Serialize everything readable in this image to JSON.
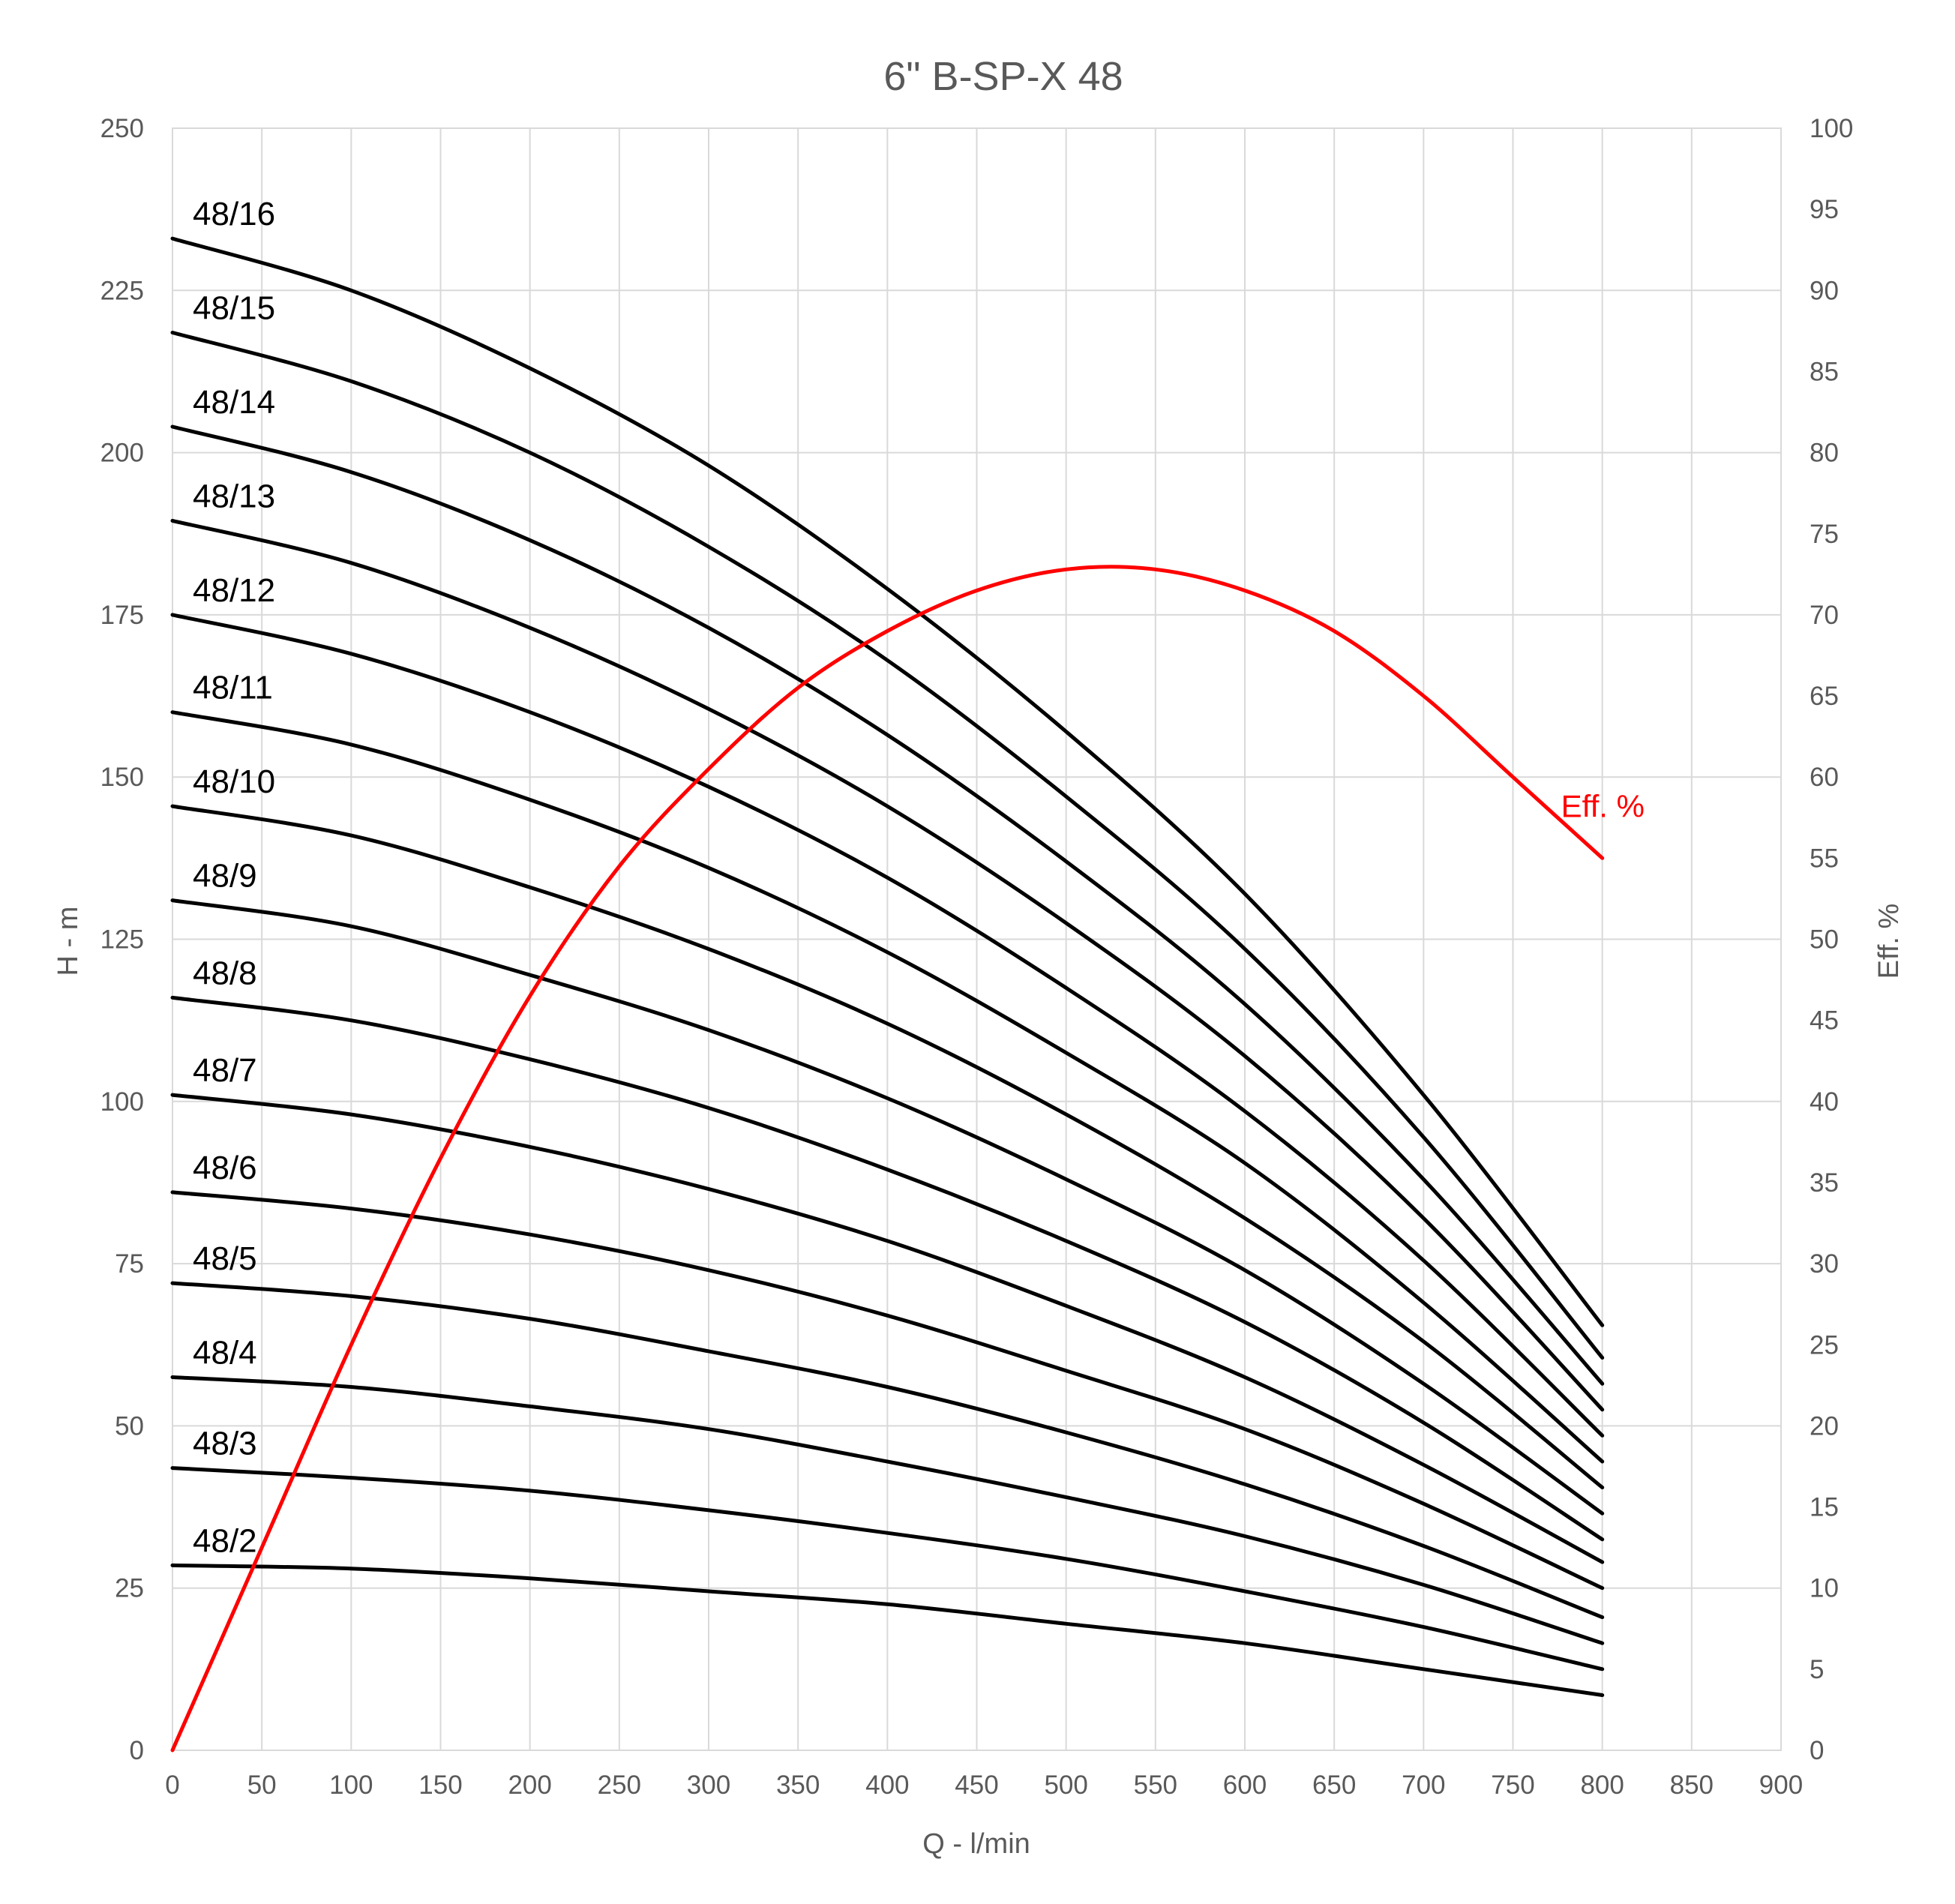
{
  "chart_data": {
    "type": "line",
    "title": "6\" B-SP-X 48",
    "xlabel": "Q - l/min",
    "ylabel": "H - m",
    "y2label": "Eff. %",
    "xlim": [
      0,
      900
    ],
    "ylim": [
      0,
      250
    ],
    "y2lim": [
      0,
      100
    ],
    "xticks": [
      "0",
      "50",
      "100",
      "150",
      "200",
      "250",
      "300",
      "350",
      "400",
      "450",
      "500",
      "550",
      "600",
      "650",
      "700",
      "750",
      "800",
      "850",
      "900"
    ],
    "yticks": [
      "0",
      "25",
      "50",
      "75",
      "100",
      "125",
      "150",
      "175",
      "200",
      "225",
      "250"
    ],
    "y2ticks": [
      "0",
      "5",
      "10",
      "15",
      "20",
      "25",
      "30",
      "35",
      "40",
      "45",
      "50",
      "55",
      "60",
      "65",
      "70",
      "75",
      "80",
      "85",
      "90",
      "95",
      "100"
    ],
    "grid": true,
    "x": [
      0,
      100,
      200,
      300,
      400,
      500,
      600,
      700,
      800
    ],
    "series": [
      {
        "name": "48/16",
        "axis": "left",
        "values": [
          233,
          225,
          213,
          198,
          179,
          157,
          132,
          101,
          65.5
        ]
      },
      {
        "name": "48/15",
        "axis": "left",
        "values": [
          218.5,
          211,
          200,
          185.5,
          168,
          147,
          123.5,
          94.5,
          60.5
        ]
      },
      {
        "name": "48/14",
        "axis": "left",
        "values": [
          204,
          197,
          186.5,
          173,
          156.5,
          137,
          115,
          88,
          56.5
        ]
      },
      {
        "name": "48/13",
        "axis": "left",
        "values": [
          189.5,
          183,
          173,
          160.5,
          145.5,
          127.5,
          107,
          82,
          52.5
        ]
      },
      {
        "name": "48/12",
        "axis": "left",
        "values": [
          175,
          169,
          160,
          148.5,
          134.5,
          117.5,
          98.5,
          75.5,
          48.5
        ]
      },
      {
        "name": "48/11",
        "axis": "left",
        "values": [
          160,
          155,
          146.5,
          136,
          123,
          107.5,
          90.5,
          69,
          44.5
        ]
      },
      {
        "name": "48/10",
        "axis": "left",
        "values": [
          145.5,
          141,
          133,
          123.5,
          112,
          98,
          82,
          63,
          40.5
        ]
      },
      {
        "name": "48/9",
        "axis": "left",
        "values": [
          131,
          127,
          119.5,
          111,
          100.5,
          88,
          74,
          56.5,
          36.5
        ]
      },
      {
        "name": "48/8",
        "axis": "left",
        "values": [
          116,
          112.5,
          106.5,
          99,
          89.5,
          78.5,
          66,
          50.5,
          32.5
        ]
      },
      {
        "name": "48/7",
        "axis": "left",
        "values": [
          101,
          98,
          93,
          86.5,
          78.5,
          68.5,
          57.5,
          44,
          29
        ]
      },
      {
        "name": "48/6",
        "axis": "left",
        "values": [
          86,
          83.5,
          79.5,
          74,
          67,
          58.5,
          49.5,
          38,
          25
        ]
      },
      {
        "name": "48/5",
        "axis": "left",
        "values": [
          72,
          70,
          66.5,
          61.5,
          56,
          49,
          41,
          31.5,
          20.5
        ]
      },
      {
        "name": "48/4",
        "axis": "left",
        "values": [
          57.5,
          56,
          53,
          49.5,
          44.5,
          39,
          33,
          25.5,
          16.5
        ]
      },
      {
        "name": "48/3",
        "axis": "left",
        "values": [
          43.5,
          42,
          40,
          37,
          33.5,
          29.5,
          24.5,
          19,
          12.5
        ]
      },
      {
        "name": "48/2",
        "axis": "left",
        "values": [
          28.5,
          28,
          26.5,
          24.5,
          22.5,
          19.5,
          16.5,
          12.5,
          8.5
        ]
      }
    ],
    "efficiency": {
      "name": "Eff. %",
      "axis": "right",
      "x": [
        0,
        50,
        100,
        150,
        200,
        250,
        300,
        350,
        400,
        450,
        500,
        550,
        600,
        650,
        700,
        750,
        800
      ],
      "values": [
        0,
        12.5,
        25,
        36.5,
        46.5,
        54.5,
        60.5,
        65.5,
        69,
        71.5,
        72.8,
        72.8,
        71.5,
        69,
        65,
        60,
        55
      ],
      "color": "#ff0000"
    },
    "line_color": "#000000",
    "grid_color": "#d9d9d9",
    "text_color": "#595959"
  }
}
